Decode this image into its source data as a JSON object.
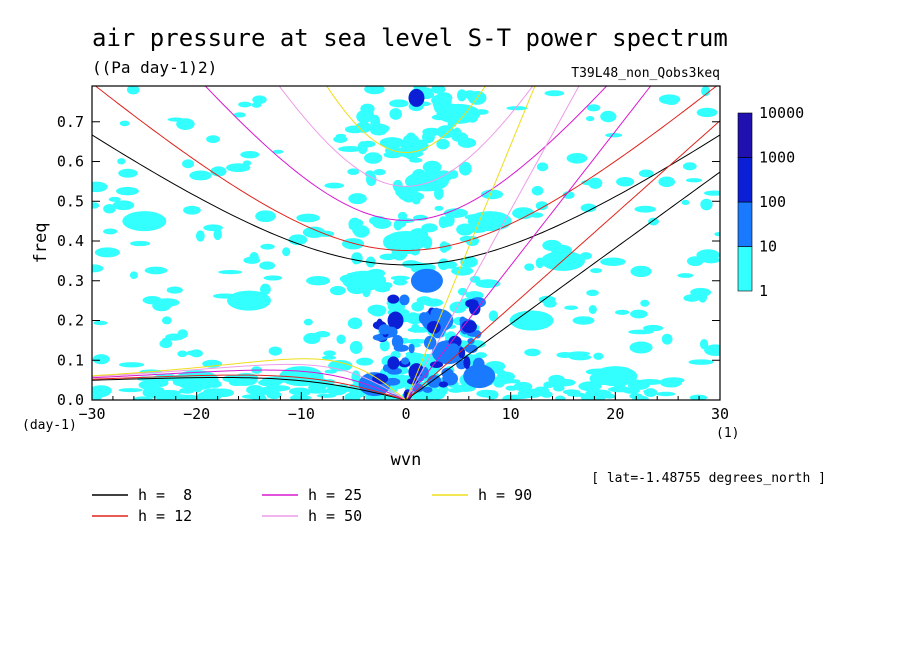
{
  "chart_data": {
    "type": "heatmap",
    "title": "air pressure at sea level S-T power spectrum",
    "units": "((Pa day-1)2)",
    "experiment": "T39L48_non_Qobs3keq",
    "xlabel": "wvn",
    "ylabel": "freq",
    "x_unit": "(1)",
    "y_unit": "(day-1)",
    "xlim": [
      -30,
      30
    ],
    "ylim": [
      0,
      0.79
    ],
    "xticks": [
      -30,
      -20,
      -10,
      0,
      10,
      20,
      30
    ],
    "yticks": [
      0.0,
      0.1,
      0.2,
      0.3,
      0.4,
      0.5,
      0.6,
      0.7
    ],
    "ytick_labels": [
      "0.0",
      "0.1",
      "0.2",
      "0.3",
      "0.4",
      "0.5",
      "0.6",
      "0.7"
    ],
    "latitude_note": "[ lat=-1.48755 degrees_north ]",
    "colorbar": {
      "levels": [
        "1",
        "10",
        "100",
        "1000",
        "10000"
      ],
      "colors": [
        "#33ffff",
        "#1a7aff",
        "#0a1fd6",
        "#2010b0"
      ]
    },
    "dispersion_curves": [
      {
        "name": "h =  8",
        "h": 8,
        "color": "#000000"
      },
      {
        "name": "h = 12",
        "h": 12,
        "color": "#e0241c"
      },
      {
        "name": "h = 25",
        "h": 25,
        "color": "#d81ad0"
      },
      {
        "name": "h = 50",
        "h": 50,
        "color": "#ee9ce8"
      },
      {
        "name": "h = 90",
        "h": 90,
        "color": "#eedd1a"
      }
    ],
    "spectral_blobs": [
      {
        "x": 1,
        "y": 0.76,
        "level": 2
      },
      {
        "x": 2,
        "y": 0.3,
        "level": 1
      },
      {
        "x": 3,
        "y": 0.2,
        "level": 1
      },
      {
        "x": -1,
        "y": 0.2,
        "level": 2
      },
      {
        "x": 4,
        "y": 0.12,
        "level": 1
      },
      {
        "x": 1,
        "y": 0.07,
        "level": 2
      },
      {
        "x": 7,
        "y": 0.06,
        "level": 1
      },
      {
        "x": -3,
        "y": 0.04,
        "level": 1
      },
      {
        "x": 0,
        "y": 0.4,
        "level": 0
      },
      {
        "x": 2,
        "y": 0.55,
        "level": 0
      },
      {
        "x": 5,
        "y": 0.72,
        "level": 0
      },
      {
        "x": -4,
        "y": 0.3,
        "level": 0
      },
      {
        "x": 8,
        "y": 0.45,
        "level": 0
      },
      {
        "x": 12,
        "y": 0.2,
        "level": 0
      },
      {
        "x": -10,
        "y": 0.06,
        "level": 0
      },
      {
        "x": -20,
        "y": 0.05,
        "level": 0
      },
      {
        "x": 20,
        "y": 0.06,
        "level": 0
      },
      {
        "x": -25,
        "y": 0.45,
        "level": 0
      },
      {
        "x": 15,
        "y": 0.35,
        "level": 0
      },
      {
        "x": -15,
        "y": 0.25,
        "level": 0
      }
    ]
  }
}
